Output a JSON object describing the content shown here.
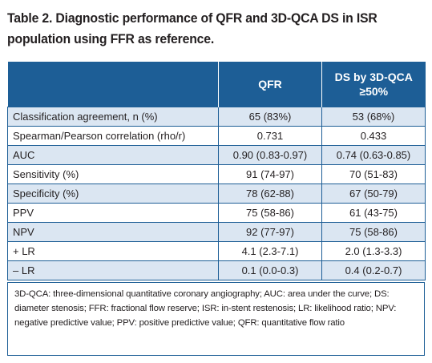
{
  "caption": {
    "line1": "Table 2. Diagnostic performance of QFR and 3D-QCA DS in ISR",
    "line2": "population using FFR as reference."
  },
  "table": {
    "headers": [
      "",
      "QFR",
      "DS by 3D-QCA",
      "≥50%"
    ],
    "rows": [
      {
        "label": "Classification agreement, n (%)",
        "qfr": "65 (83%)",
        "ds": "53 (68%)"
      },
      {
        "label": "Spearman/Pearson correlation (rho/r)",
        "qfr": "0.731",
        "ds": "0.433"
      },
      {
        "label": "AUC",
        "qfr": "0.90 (0.83-0.97)",
        "ds": "0.74 (0.63-0.85)"
      },
      {
        "label": "Sensitivity (%)",
        "qfr": "91 (74-97)",
        "ds": "70 (51-83)"
      },
      {
        "label": "Specificity (%)",
        "qfr": "78 (62-88)",
        "ds": "67 (50-79)"
      },
      {
        "label": "PPV",
        "qfr": "75 (58-86)",
        "ds": "61 (43-75)"
      },
      {
        "label": "NPV",
        "qfr": "92 (77-97)",
        "ds": "75 (58-86)"
      },
      {
        "label": "+ LR",
        "qfr": "4.1 (2.3-7.1)",
        "ds": "2.0 (1.3-3.3)"
      },
      {
        "label": "– LR",
        "qfr": "0.1 (0.0-0.3)",
        "ds": "0.4 (0.2-0.7)"
      }
    ]
  },
  "footnote": "3D-QCA: three-dimensional quantitative coronary angiography; AUC: area under the curve; DS: diameter stenosis; FFR: fractional flow reserve; ISR: in-stent restenosis; LR: likelihood ratio; NPV: negative predictive value; PPV: positive predictive value; QFR: quantitative flow ratio",
  "colors": {
    "header_bg": "#1d5e96",
    "stripe_bg": "#dbe6f2",
    "border": "#1d5e96"
  }
}
